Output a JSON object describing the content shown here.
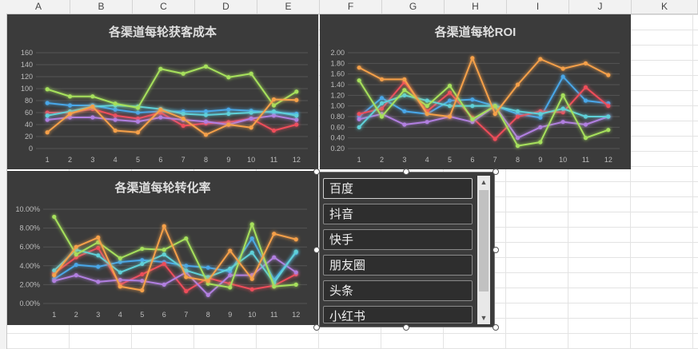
{
  "columns": [
    "A",
    "B",
    "C",
    "D",
    "E",
    "F",
    "G",
    "H",
    "I",
    "J",
    "K"
  ],
  "colors": {
    "baidu": "#4aa7e8",
    "douyin": "#ee4d5a",
    "kuaishou": "#b17fe0",
    "pengyouquan": "#5fd0d8",
    "toutiao": "#a6e05c",
    "xiaohongshu": "#f5a04a"
  },
  "listbox": {
    "items": [
      "百度",
      "抖音",
      "快手",
      "朋友圈",
      "头条",
      "小红书"
    ],
    "selected": "百度"
  },
  "chart_data": [
    {
      "type": "line",
      "title": "各渠道每轮获客成本",
      "x": [
        1,
        2,
        3,
        4,
        5,
        6,
        7,
        8,
        9,
        10,
        11,
        12
      ],
      "ylim": [
        0,
        160
      ],
      "yticks": [
        0,
        20,
        40,
        60,
        80,
        100,
        120,
        140,
        160
      ],
      "ytick_labels": [
        "0",
        "20",
        "40",
        "60",
        "80",
        "100",
        "120",
        "140",
        "160"
      ],
      "series": [
        {
          "values": [
            76,
            72,
            72,
            65,
            60,
            62,
            62,
            62,
            65,
            63,
            60,
            58
          ]
        },
        {
          "values": [
            60,
            60,
            66,
            55,
            50,
            60,
            38,
            42,
            44,
            50,
            30,
            40
          ]
        },
        {
          "values": [
            48,
            52,
            52,
            48,
            45,
            52,
            48,
            45,
            40,
            50,
            55,
            48
          ]
        },
        {
          "values": [
            55,
            62,
            70,
            72,
            70,
            66,
            58,
            56,
            58,
            60,
            62,
            55
          ]
        },
        {
          "values": [
            99,
            87,
            87,
            75,
            68,
            133,
            125,
            137,
            119,
            125,
            72,
            95
          ]
        },
        {
          "values": [
            27,
            58,
            70,
            30,
            27,
            65,
            50,
            23,
            40,
            35,
            82,
            81
          ]
        }
      ]
    },
    {
      "type": "line",
      "title": "各渠道每轮ROI",
      "x": [
        1,
        2,
        3,
        4,
        5,
        6,
        7,
        8,
        9,
        10,
        11,
        12
      ],
      "ylim": [
        0.2,
        2.0
      ],
      "yticks": [
        0.2,
        0.4,
        0.6,
        0.8,
        1.0,
        1.2,
        1.4,
        1.6,
        1.8,
        2.0
      ],
      "ytick_labels": [
        "0.20",
        "0.40",
        "0.60",
        "0.80",
        "1.00",
        "1.20",
        "1.40",
        "1.60",
        "1.80",
        "2.00"
      ],
      "series": [
        {
          "values": [
            0.8,
            1.15,
            0.9,
            0.85,
            1.1,
            1.12,
            1.0,
            0.85,
            0.78,
            1.55,
            1.1,
            1.05
          ]
        },
        {
          "values": [
            0.85,
            0.95,
            1.45,
            0.9,
            1.25,
            0.78,
            0.38,
            0.8,
            0.9,
            0.88,
            1.35,
            1.0
          ]
        },
        {
          "values": [
            0.75,
            0.85,
            0.65,
            0.7,
            0.8,
            0.7,
            1.0,
            0.4,
            0.6,
            0.7,
            0.65,
            0.8
          ]
        },
        {
          "values": [
            0.6,
            1.05,
            1.2,
            1.1,
            1.0,
            1.0,
            1.0,
            0.9,
            0.85,
            0.95,
            0.8,
            0.8
          ]
        },
        {
          "values": [
            1.48,
            0.8,
            1.3,
            1.0,
            1.38,
            0.75,
            1.0,
            0.25,
            0.32,
            1.2,
            0.4,
            0.55
          ]
        },
        {
          "values": [
            1.72,
            1.5,
            1.5,
            0.85,
            0.8,
            1.9,
            0.85,
            1.4,
            1.88,
            1.7,
            1.8,
            1.58
          ]
        }
      ]
    },
    {
      "type": "line",
      "title": "各渠道每轮转化率",
      "x": [
        1,
        2,
        3,
        4,
        5,
        6,
        7,
        8,
        9,
        10,
        11,
        12
      ],
      "ylim": [
        0,
        10
      ],
      "yticks": [
        0,
        2,
        4,
        6,
        8,
        10
      ],
      "ytick_labels": [
        "0.00%",
        "2.00%",
        "4.00%",
        "6.00%",
        "8.00%",
        "10.00%"
      ],
      "series": [
        {
          "values": [
            2.6,
            4.1,
            3.9,
            4.4,
            4.6,
            4.4,
            4.0,
            3.8,
            3.4,
            6.9,
            2.5,
            5.4
          ]
        },
        {
          "values": [
            3.2,
            4.9,
            5.9,
            2.0,
            3.1,
            4.2,
            1.3,
            2.7,
            2.1,
            1.5,
            1.9,
            3.1
          ]
        },
        {
          "values": [
            2.4,
            3.0,
            2.3,
            2.5,
            2.4,
            2.0,
            3.3,
            0.9,
            3.0,
            3.0,
            4.9,
            3.3
          ]
        },
        {
          "values": [
            3.5,
            5.7,
            5.1,
            3.3,
            4.2,
            5.2,
            3.5,
            2.8,
            3.7,
            5.4,
            2.2,
            5.5
          ]
        },
        {
          "values": [
            9.2,
            5.2,
            6.5,
            4.8,
            5.8,
            5.7,
            6.9,
            2.1,
            1.7,
            8.4,
            1.8,
            2.0
          ]
        },
        {
          "values": [
            3.0,
            6.0,
            7.0,
            1.8,
            1.4,
            8.2,
            2.8,
            2.4,
            5.6,
            2.6,
            7.4,
            6.8
          ]
        }
      ]
    }
  ]
}
